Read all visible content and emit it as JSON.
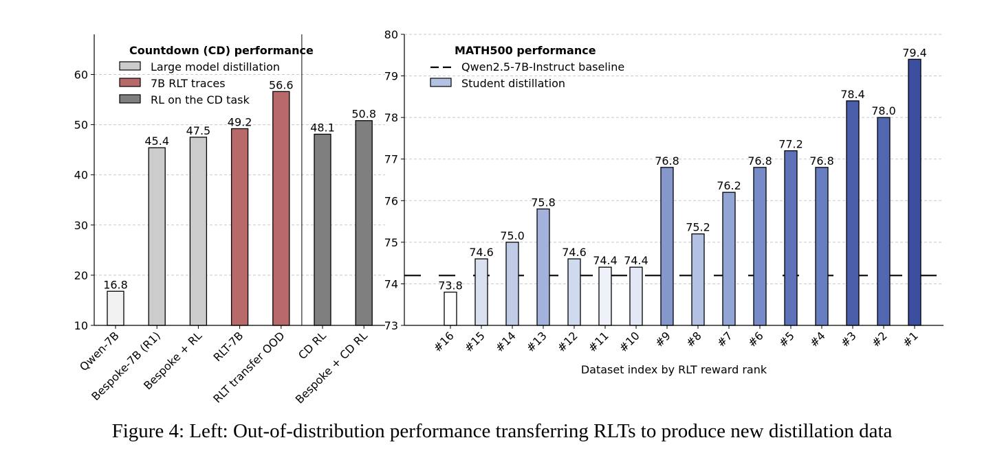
{
  "chart_data": [
    {
      "type": "bar",
      "legend_title": "Countdown (CD) performance",
      "legend_placement": "top-left",
      "categories": [
        "Qwen-7B",
        "Bespoke-7B (R1)",
        "Bespoke + RL",
        "RLT-7B",
        "RLT transfer OOD",
        "CD RL",
        "Bespoke + CD RL"
      ],
      "values": [
        16.8,
        45.4,
        47.5,
        49.2,
        56.6,
        48.1,
        50.8
      ],
      "data_labels": [
        "16.8",
        "45.4",
        "47.5",
        "49.2",
        "56.6",
        "48.1",
        "50.8"
      ],
      "bar_colors": [
        "#f2f2f2",
        "#cccccc",
        "#cccccc",
        "#b86a6a",
        "#b86a6a",
        "#7f7f7f",
        "#7f7f7f"
      ],
      "legend": [
        {
          "label": "Large model distillation",
          "color": "#cccccc"
        },
        {
          "label": "7B RLT traces",
          "color": "#b86a6a"
        },
        {
          "label": "RL on the CD task",
          "color": "#7f7f7f"
        }
      ],
      "ylim": [
        10,
        68
      ],
      "yticks": [
        10,
        20,
        30,
        40,
        50,
        60
      ],
      "grid": "y dashed",
      "separator_after_category": "RLT transfer OOD"
    },
    {
      "type": "bar",
      "legend_title": "MATH500 performance",
      "legend_placement": "top-left",
      "xlabel": "Dataset index by RLT reward rank",
      "categories": [
        "#16",
        "#15",
        "#14",
        "#13",
        "#12",
        "#11",
        "#10",
        "#9",
        "#8",
        "#7",
        "#6",
        "#5",
        "#4",
        "#3",
        "#2",
        "#1"
      ],
      "values": [
        73.8,
        74.6,
        75.0,
        75.8,
        74.6,
        74.4,
        74.4,
        76.8,
        75.2,
        76.2,
        76.8,
        77.2,
        76.8,
        78.4,
        78.0,
        79.4
      ],
      "data_labels": [
        "73.8",
        "74.6",
        "75.0",
        "75.8",
        "74.6",
        "74.4",
        "74.4",
        "76.8",
        "75.2",
        "76.2",
        "76.8",
        "77.2",
        "76.8",
        "78.4",
        "78.0",
        "79.4"
      ],
      "bar_colors": [
        "#ffffff",
        "#d9e1f1",
        "#bfcbe7",
        "#a2b2dd",
        "#d0daee",
        "#edf0f7",
        "#e1e7f4",
        "#8598cc",
        "#b3c1e3",
        "#93a5d5",
        "#788bc9",
        "#5e72ba",
        "#697dc1",
        "#495da8",
        "#5367b0",
        "#3b4e9f"
      ],
      "baseline": {
        "label": "Qwen2.5-7B-Instruct baseline",
        "value": 74.2
      },
      "legend": [
        {
          "label": "Qwen2.5-7B-Instruct baseline",
          "kind": "dashed-line"
        },
        {
          "label": "Student distillation",
          "color": "#b3c1e3"
        }
      ],
      "ylim": [
        73,
        80
      ],
      "yticks": [
        73,
        74,
        75,
        76,
        77,
        78,
        79,
        80
      ],
      "grid": "y dashed"
    }
  ],
  "caption": "Figure 4:  Left: Out-of-distribution performance transferring RLTs to produce new distillation data"
}
